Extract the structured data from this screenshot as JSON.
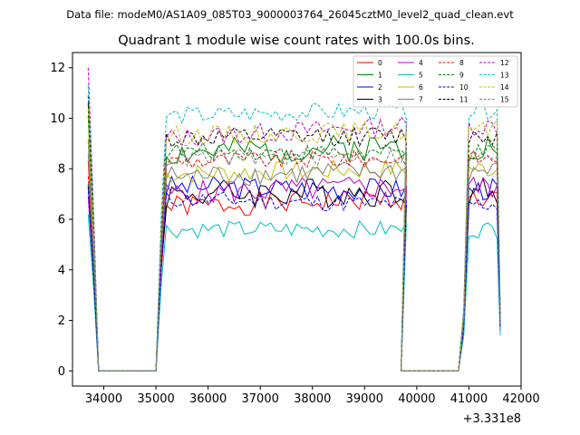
{
  "chart_data": {
    "type": "line",
    "suptitle": "Data file: modeM0/AS1A09_085T03_9000003764_26045cztM0_level2_quad_clean.evt",
    "title": "Quadrant 1 module wise count rates with 100.0s bins.",
    "xlabel": "",
    "ylabel": "",
    "x_offset_label": "+3.331e8",
    "xlim": [
      33400,
      42000
    ],
    "ylim": [
      -0.6,
      12.6
    ],
    "xticks": [
      34000,
      35000,
      36000,
      37000,
      38000,
      39000,
      40000,
      41000,
      42000
    ],
    "yticks": [
      0,
      2,
      4,
      6,
      8,
      10,
      12
    ],
    "legend_position": "top-right",
    "segments": [
      {
        "x_start": 33700,
        "x_end": 33900,
        "values": [
          8.2,
          5.0,
          0.0
        ]
      },
      {
        "x_start": 35000,
        "x_end": 39700,
        "values": [
          0.0,
          4.5,
          7.6
        ]
      },
      {
        "x_start": 39600,
        "x_end": 39800,
        "values": [
          8.0,
          0.0
        ]
      },
      {
        "x_start": 40800,
        "x_end": 41600,
        "values": [
          0.0,
          1.5,
          7.0,
          7.2,
          7.0,
          7.3,
          6.6,
          7.4,
          6.8,
          6.9,
          2.0
        ]
      }
    ],
    "series": [
      {
        "name": "0",
        "color": "#ff0000",
        "dash": "solid",
        "start": 8.3,
        "level": 6.5,
        "amp": 0.45,
        "late": 6.8,
        "final": 1.9
      },
      {
        "name": "1",
        "color": "#008000",
        "dash": "solid",
        "start": 10.1,
        "level": 8.6,
        "amp": 0.55,
        "late": 8.9,
        "final": 2.0
      },
      {
        "name": "2",
        "color": "#0000ff",
        "dash": "solid",
        "start": 7.3,
        "level": 7.3,
        "amp": 0.45,
        "late": 7.2,
        "final": 1.7
      },
      {
        "name": "3",
        "color": "#000000",
        "dash": "solid",
        "start": 10.6,
        "level": 7.0,
        "amp": 0.6,
        "late": 7.1,
        "final": 1.8
      },
      {
        "name": "4",
        "color": "#bf00bf",
        "dash": "solid",
        "start": 6.9,
        "level": 7.0,
        "amp": 0.5,
        "late": 7.3,
        "final": 1.6
      },
      {
        "name": "5",
        "color": "#00bfbf",
        "dash": "solid",
        "start": 6.2,
        "level": 5.6,
        "amp": 0.35,
        "late": 5.6,
        "final": 1.4
      },
      {
        "name": "6",
        "color": "#bfbf00",
        "dash": "solid",
        "start": 9.2,
        "level": 7.8,
        "amp": 0.4,
        "late": 8.0,
        "final": 1.9
      },
      {
        "name": "7",
        "color": "#808080",
        "dash": "solid",
        "start": 8.6,
        "level": 7.7,
        "amp": 0.45,
        "late": 7.9,
        "final": 1.8
      },
      {
        "name": "8",
        "color": "#ff0000",
        "dash": "dashed",
        "start": 7.7,
        "level": 8.3,
        "amp": 0.35,
        "late": 8.4,
        "final": 2.1
      },
      {
        "name": "9",
        "color": "#008000",
        "dash": "dashed",
        "start": 7.4,
        "level": 8.7,
        "amp": 0.35,
        "late": 8.6,
        "final": 2.0
      },
      {
        "name": "10",
        "color": "#0000ff",
        "dash": "dashed",
        "start": 7.3,
        "level": 6.8,
        "amp": 0.35,
        "late": 6.6,
        "final": 1.7
      },
      {
        "name": "11",
        "color": "#000000",
        "dash": "dashed",
        "start": 10.9,
        "level": 9.2,
        "amp": 0.4,
        "late": 9.3,
        "final": 2.2
      },
      {
        "name": "12",
        "color": "#bf00bf",
        "dash": "dashed",
        "start": 12.0,
        "level": 9.2,
        "amp": 0.4,
        "late": 9.7,
        "final": 2.3
      },
      {
        "name": "13",
        "color": "#00bfbf",
        "dash": "dashed",
        "start": 11.3,
        "level": 10.1,
        "amp": 0.35,
        "late": 10.3,
        "final": 2.4
      },
      {
        "name": "14",
        "color": "#bfbf00",
        "dash": "dashed",
        "start": 10.4,
        "level": 9.3,
        "amp": 0.4,
        "late": 9.5,
        "final": 2.2
      },
      {
        "name": "15",
        "color": "#808080",
        "dash": "dashed",
        "start": 9.1,
        "level": 8.4,
        "amp": 0.35,
        "late": 8.5,
        "final": 2.0
      }
    ]
  }
}
